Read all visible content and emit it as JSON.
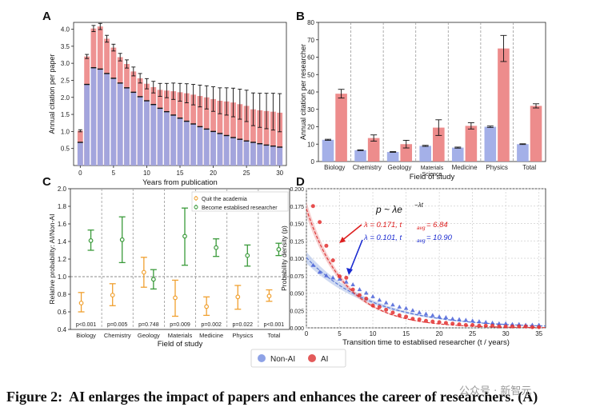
{
  "caption": {
    "prefix": "Figure 2:",
    "text": "AI enlarges the impact of papers and enhances the career of researchers. (A)"
  },
  "watermark": "公众号 · 新智元",
  "legend": {
    "items": [
      {
        "label": "Non-AI",
        "color": "#8ea2e6"
      },
      {
        "label": "AI",
        "color": "#e35a5a"
      }
    ]
  },
  "colors": {
    "nonai": "#9aa7e6",
    "ai": "#eb7f7f",
    "quit": "#f0a030",
    "become": "#3a9a3a",
    "scatter_ai": "#e33030",
    "scatter_nonai": "#4a62d8",
    "fit_ai": "#dd3a3a",
    "fit_nonai": "#5a78d6"
  },
  "chart_data": [
    {
      "panel": "A",
      "type": "bar",
      "xlabel": "Years from publication",
      "ylabel": "Annual citation per paper",
      "ylim": [
        0,
        4.2
      ],
      "yticks": [
        "0.5",
        "1.0",
        "1.5",
        "2.0",
        "2.5",
        "3.0",
        "3.5",
        "4.0"
      ],
      "xticks": [
        "0",
        "5",
        "10",
        "15",
        "20",
        "25",
        "30"
      ],
      "x": [
        0,
        1,
        2,
        3,
        4,
        5,
        6,
        7,
        8,
        9,
        10,
        11,
        12,
        13,
        14,
        15,
        16,
        17,
        18,
        19,
        20,
        21,
        22,
        23,
        24,
        25,
        26,
        27,
        28,
        29,
        30
      ],
      "series": [
        {
          "name": "Non-AI",
          "values": [
            0.68,
            2.38,
            2.87,
            2.83,
            2.7,
            2.56,
            2.42,
            2.28,
            2.15,
            2.02,
            1.9,
            1.79,
            1.68,
            1.58,
            1.48,
            1.39,
            1.3,
            1.22,
            1.14,
            1.07,
            1.0,
            0.94,
            0.88,
            0.82,
            0.77,
            0.72,
            0.68,
            0.64,
            0.6,
            0.57,
            0.54
          ]
        },
        {
          "name": "AI",
          "values": [
            1.02,
            3.2,
            4.02,
            4.08,
            3.72,
            3.46,
            3.18,
            2.98,
            2.76,
            2.56,
            2.4,
            2.3,
            2.22,
            2.2,
            2.18,
            2.15,
            2.12,
            2.08,
            2.04,
            2.0,
            1.95,
            1.9,
            1.88,
            1.85,
            1.8,
            1.75,
            1.65,
            1.62,
            1.6,
            1.58,
            1.55
          ],
          "err": [
            0.03,
            0.06,
            0.09,
            0.09,
            0.1,
            0.1,
            0.11,
            0.12,
            0.13,
            0.14,
            0.15,
            0.17,
            0.19,
            0.21,
            0.24,
            0.26,
            0.28,
            0.3,
            0.32,
            0.34,
            0.36,
            0.38,
            0.4,
            0.42,
            0.44,
            0.46,
            0.48,
            0.5,
            0.52,
            0.54,
            0.56
          ]
        }
      ]
    },
    {
      "panel": "B",
      "type": "bar",
      "xlabel": "Field of study",
      "ylabel": "Annual citation per researcher",
      "ylim": [
        0,
        80
      ],
      "yticks": [
        "0",
        "10",
        "20",
        "30",
        "40",
        "50",
        "60",
        "70",
        "80"
      ],
      "categories": [
        "Biology",
        "Chemistry",
        "Geology",
        "Materials\nScience",
        "Medicine",
        "Physics",
        "Total"
      ],
      "series": [
        {
          "name": "Non-AI",
          "values": [
            12.5,
            6.5,
            5.5,
            9.0,
            8.0,
            20.0,
            10.0
          ],
          "err": [
            0.3,
            0.2,
            0.2,
            0.3,
            0.3,
            0.4,
            0.2
          ]
        },
        {
          "name": "AI",
          "values": [
            39.0,
            13.5,
            10.0,
            19.5,
            20.5,
            65.0,
            32.0
          ],
          "err": [
            2.5,
            1.8,
            2.2,
            4.5,
            1.8,
            7.5,
            1.2
          ]
        }
      ]
    },
    {
      "panel": "C",
      "type": "scatter",
      "xlabel": "Field of study",
      "ylabel": "Relative probability: AI/Non-AI",
      "ylim": [
        0.4,
        2.0
      ],
      "yticks": [
        "0.4",
        "0.6",
        "0.8",
        "1.0",
        "1.2",
        "1.4",
        "1.6",
        "1.8",
        "2.0"
      ],
      "categories": [
        "Biology",
        "Chemistry",
        "Geology",
        "Materials",
        "Medicine",
        "Physics",
        "Total"
      ],
      "pvalues": [
        "p<0.001",
        "p=0.005",
        "p=0.748",
        "p=0.009",
        "p=0.002",
        "p=0.022",
        "p<0.001"
      ],
      "legend": [
        "Quit the academia",
        "Become establised researcher"
      ],
      "series": [
        {
          "name": "Quit the academia",
          "values": [
            0.7,
            0.79,
            1.05,
            0.76,
            0.66,
            0.77,
            0.78
          ],
          "lo": [
            0.6,
            0.67,
            0.88,
            0.55,
            0.56,
            0.63,
            0.72
          ],
          "hi": [
            0.82,
            0.92,
            1.22,
            0.96,
            0.77,
            0.9,
            0.85
          ]
        },
        {
          "name": "Become establised researcher",
          "values": [
            1.41,
            1.42,
            0.97,
            1.46,
            1.33,
            1.24,
            1.31
          ],
          "lo": [
            1.3,
            1.16,
            0.86,
            1.13,
            1.23,
            1.12,
            1.24
          ],
          "hi": [
            1.53,
            1.68,
            1.08,
            1.78,
            1.43,
            1.36,
            1.38
          ]
        }
      ]
    },
    {
      "panel": "D",
      "type": "scatter",
      "xlabel": "Transition time to establised researcher (t / years)",
      "ylabel": "Probability density (p)",
      "ylim": [
        0,
        0.2
      ],
      "xlim": [
        0,
        36
      ],
      "yticks": [
        "0.000",
        "0.025",
        "0.050",
        "0.075",
        "0.100",
        "0.125",
        "0.150",
        "0.175",
        "0.200"
      ],
      "xticks": [
        "0",
        "5",
        "10",
        "15",
        "20",
        "25",
        "30",
        "35"
      ],
      "formula": "p ~ λe",
      "formula_exp": "−λt",
      "annotations": [
        {
          "text": "λ = 0.171, t",
          "sub": "avg",
          "tail": " = 6.84",
          "color": "#dd2020",
          "lambda": 0.171
        },
        {
          "text": "λ = 0.101, t",
          "sub": "avg",
          "tail": " = 10.90",
          "color": "#1a2ad0",
          "lambda": 0.101
        }
      ],
      "series": [
        {
          "name": "AI",
          "marker": "circle",
          "x": [
            1,
            2,
            3,
            4,
            5,
            6,
            7,
            8,
            9,
            10,
            11,
            12,
            13,
            14,
            15,
            16,
            17,
            18,
            19,
            20,
            21,
            22,
            23,
            24,
            25,
            26,
            27,
            28,
            29,
            30,
            31,
            32,
            33,
            34,
            35
          ],
          "y": [
            0.175,
            0.152,
            0.118,
            0.097,
            0.074,
            0.072,
            0.055,
            0.047,
            0.042,
            0.032,
            0.03,
            0.026,
            0.022,
            0.018,
            0.016,
            0.013,
            0.012,
            0.01,
            0.009,
            0.008,
            0.007,
            0.006,
            0.005,
            0.004,
            0.004,
            0.003,
            0.003,
            0.003,
            0.002,
            0.002,
            0.002,
            0.002,
            0.002,
            0.001,
            0.001
          ]
        },
        {
          "name": "Non-AI",
          "marker": "triangle",
          "x": [
            1,
            2,
            3,
            4,
            5,
            6,
            7,
            8,
            9,
            10,
            11,
            12,
            13,
            14,
            15,
            16,
            17,
            18,
            19,
            20,
            21,
            22,
            23,
            24,
            25,
            26,
            27,
            28,
            29,
            30,
            31,
            32,
            33,
            34,
            35
          ],
          "y": [
            0.09,
            0.08,
            0.075,
            0.072,
            0.07,
            0.066,
            0.062,
            0.055,
            0.05,
            0.045,
            0.04,
            0.036,
            0.033,
            0.03,
            0.028,
            0.025,
            0.022,
            0.02,
            0.018,
            0.016,
            0.015,
            0.013,
            0.012,
            0.011,
            0.01,
            0.009,
            0.008,
            0.007,
            0.006,
            0.006,
            0.005,
            0.005,
            0.004,
            0.004,
            0.004
          ]
        }
      ]
    }
  ]
}
